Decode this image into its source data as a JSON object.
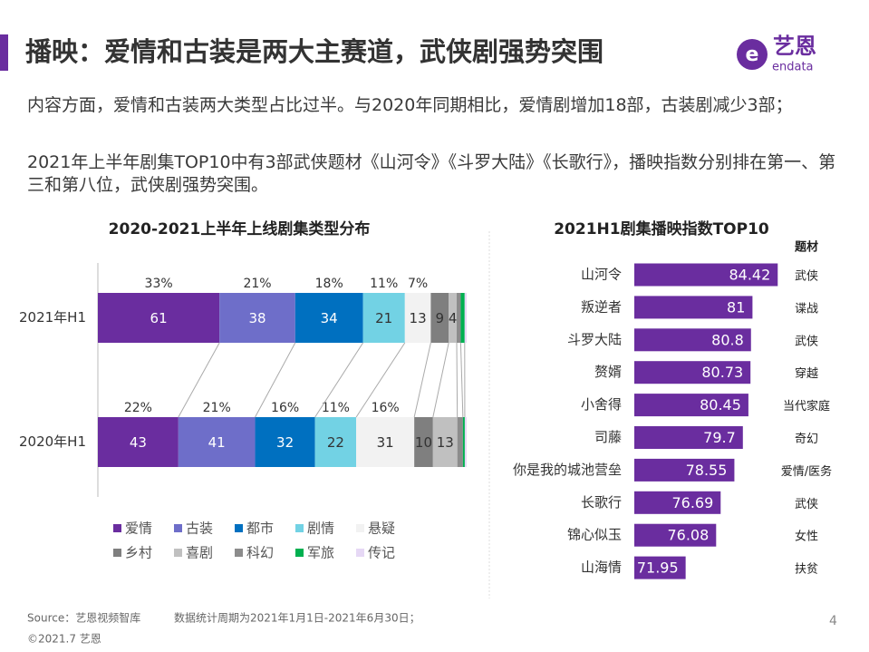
{
  "header": {
    "title": "播映：爱情和古装是两大主赛道，武侠剧强势突围",
    "logo_cn": "艺恩",
    "logo_en": "endata"
  },
  "paragraphs": [
    "内容方面，爱情和古装两大类型占比过半。与2020年同期相比，爱情剧增加18部，古装剧减少3部；",
    "2021年上半年剧集TOP10中有3部武侠题材《山河令》《斗罗大陆》《长歌行》，播映指数分别排在第一、第三和第八位，武侠剧强势突围。"
  ],
  "chart_data": [
    {
      "type": "stacked_bar",
      "stacking": "percent",
      "title": "2020-2021上半年上线剧集类型分布",
      "categories": [
        "2021年H1",
        "2020年H1"
      ],
      "series": [
        {
          "name": "爱情",
          "color": "#6a2d9f",
          "values": [
            61,
            43
          ],
          "share_labels": [
            "33%",
            "22%"
          ]
        },
        {
          "name": "古装",
          "color": "#6e6ec9",
          "values": [
            38,
            41
          ],
          "share_labels": [
            "21%",
            "21%"
          ]
        },
        {
          "name": "都市",
          "color": "#0070c0",
          "values": [
            34,
            32
          ],
          "share_labels": [
            "18%",
            "16%"
          ]
        },
        {
          "name": "剧情",
          "color": "#72d2e4",
          "values": [
            21,
            22
          ],
          "share_labels": [
            "11%",
            "11%"
          ]
        },
        {
          "name": "悬疑",
          "color": "#f2f2f2",
          "values": [
            13,
            31
          ],
          "share_labels": [
            "7%",
            "16%"
          ]
        },
        {
          "name": "乡村",
          "color": "#7f7f7f",
          "values": [
            9,
            10
          ]
        },
        {
          "name": "喜剧",
          "color": "#c0c0c0",
          "values": [
            4,
            13
          ]
        },
        {
          "name": "科幻",
          "color": "#8c8c8c",
          "values": [
            2,
            3
          ]
        },
        {
          "name": "军旅",
          "color": "#00b050",
          "values": [
            2,
            1
          ]
        },
        {
          "name": "传记",
          "color": "#e6d8f5",
          "values": [
            1,
            1
          ]
        }
      ]
    },
    {
      "type": "bar",
      "orientation": "horizontal",
      "title": "2021H1剧集播映指数TOP10",
      "color": "#6a2d9f",
      "xlim": [
        65,
        85
      ],
      "categories": [
        "山河令",
        "叛逆者",
        "斗罗大陆",
        "赘婿",
        "小舍得",
        "司藤",
        "你是我的城池营垒",
        "长歌行",
        "锦心似玉",
        "山海情"
      ],
      "values": [
        84.42,
        81,
        80.8,
        80.73,
        80.45,
        79.7,
        78.55,
        76.69,
        76.08,
        71.95
      ],
      "genre_title": "题材",
      "genres": [
        "武侠",
        "谍战",
        "武侠",
        "穿越",
        "当代家庭",
        "奇幻",
        "爱情/医务",
        "武侠",
        "女性",
        "扶贫"
      ]
    }
  ],
  "footer": {
    "source": "Source：艺恩视频智库",
    "period": "数据统计周期为2021年1月1日-2021年6月30日；",
    "copyright": "©2021.7 艺恩",
    "page": 4
  }
}
